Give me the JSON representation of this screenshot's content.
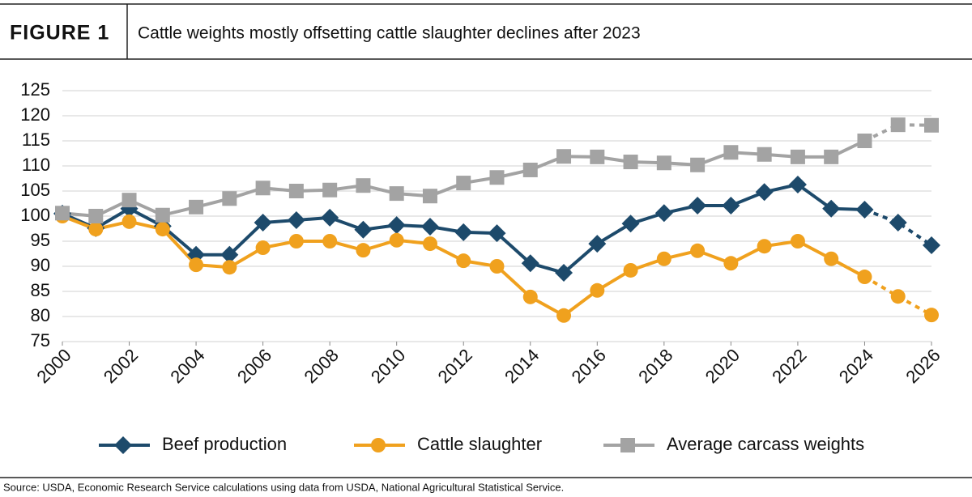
{
  "figure_label": "FIGURE 1",
  "source": "Source: USDA, Economic Research Service calculations using data from USDA, National Agricultural Statistical Service.",
  "chart_data": {
    "type": "line",
    "title": "Cattle weights mostly offsetting cattle slaughter declines after 2023",
    "x": [
      2000,
      2001,
      2002,
      2003,
      2004,
      2005,
      2006,
      2007,
      2008,
      2009,
      2010,
      2011,
      2012,
      2013,
      2014,
      2015,
      2016,
      2017,
      2018,
      2019,
      2020,
      2021,
      2022,
      2023,
      2024,
      2025,
      2026
    ],
    "xlim": [
      2000,
      2026
    ],
    "xticks": [
      2000,
      2002,
      2004,
      2006,
      2008,
      2010,
      2012,
      2014,
      2016,
      2018,
      2020,
      2022,
      2024,
      2026
    ],
    "ylim": [
      75,
      125
    ],
    "yticks": [
      75,
      80,
      85,
      90,
      95,
      100,
      105,
      110,
      115,
      120,
      125
    ],
    "grid": true,
    "dashed_from": 2024,
    "series": [
      {
        "name": "Beef production",
        "color": "#1d4a6b",
        "marker": "diamond",
        "values": [
          100.5,
          97.6,
          101.5,
          98.0,
          92.3,
          92.3,
          98.7,
          99.2,
          99.7,
          97.3,
          98.2,
          97.9,
          96.8,
          96.6,
          90.6,
          88.7,
          94.5,
          98.5,
          100.6,
          102.1,
          102.1,
          104.8,
          106.3,
          101.5,
          101.3,
          98.7,
          94.2
        ]
      },
      {
        "name": "Cattle slaughter",
        "color": "#f0a11e",
        "marker": "circle",
        "values": [
          100.0,
          97.4,
          98.9,
          97.4,
          90.3,
          89.8,
          93.7,
          95.0,
          95.0,
          93.2,
          95.2,
          94.5,
          91.1,
          90.0,
          83.9,
          80.2,
          85.2,
          89.2,
          91.5,
          93.1,
          90.6,
          94.0,
          95.0,
          91.5,
          87.9,
          84.0,
          80.3
        ]
      },
      {
        "name": "Average carcass weights",
        "color": "#a3a3a3",
        "marker": "square",
        "values": [
          100.6,
          100.0,
          103.2,
          100.2,
          101.8,
          103.5,
          105.6,
          105.0,
          105.2,
          106.1,
          104.5,
          104.0,
          106.6,
          107.7,
          109.2,
          111.9,
          111.8,
          110.8,
          110.6,
          110.2,
          112.7,
          112.3,
          111.8,
          111.8,
          115.0,
          118.2,
          118.1
        ]
      }
    ]
  }
}
